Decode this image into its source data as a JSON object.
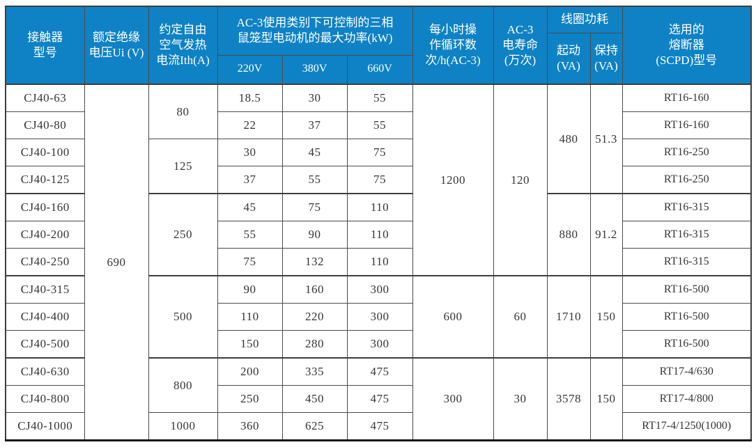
{
  "table": {
    "title": "CJ40 contactor specification table",
    "header": {
      "model": "接触器\n型号",
      "voltage": "额定绝缘\n电压Ui (V)",
      "current": "约定自由\n空气发热\n电流Ith(A)",
      "power_group": "AC-3使用类别下可控制的三相\n鼠笼型电动机的最大功率(kW)",
      "power_cols": [
        "220V",
        "380V",
        "660V"
      ],
      "cycles": "每小时操\n作循环数\n次/h(AC-3)",
      "life": "AC-3\n电寿命\n(万次)",
      "coil_group": "线圈功耗",
      "coil_cols": [
        "起动\n(VA)",
        "保持\n(VA)"
      ],
      "fuse": "选用的\n熔断器\n(SCPD)型号"
    },
    "rows": [
      {
        "cells": [
          {
            "t": "CJ40-63"
          },
          {
            "t": "690",
            "rs": 13
          },
          {
            "t": "80",
            "rs": 2
          },
          {
            "t": "18.5"
          },
          {
            "t": "30"
          },
          {
            "t": "55"
          },
          {
            "t": "1200",
            "rs": 7
          },
          {
            "t": "120",
            "rs": 7
          },
          {
            "t": "480",
            "rs": 4
          },
          {
            "t": "51.3",
            "rs": 4
          },
          {
            "t": "RT16-160"
          }
        ]
      },
      {
        "cells": [
          {
            "t": "CJ40-80"
          },
          {
            "t": "22"
          },
          {
            "t": "37"
          },
          {
            "t": "55"
          },
          {
            "t": "RT16-160"
          }
        ]
      },
      {
        "cells": [
          {
            "t": "CJ40-100"
          },
          {
            "t": "125",
            "rs": 2
          },
          {
            "t": "30"
          },
          {
            "t": "45"
          },
          {
            "t": "75"
          },
          {
            "t": "RT16-250"
          }
        ]
      },
      {
        "cells": [
          {
            "t": "CJ40-125"
          },
          {
            "t": "37"
          },
          {
            "t": "55"
          },
          {
            "t": "75"
          },
          {
            "t": "RT16-250"
          }
        ]
      },
      {
        "cells": [
          {
            "t": "CJ40-160"
          },
          {
            "t": "250",
            "rs": 3
          },
          {
            "t": "45"
          },
          {
            "t": "75"
          },
          {
            "t": "110"
          },
          {
            "t": "880",
            "rs": 3
          },
          {
            "t": "91.2",
            "rs": 3
          },
          {
            "t": "RT16-315"
          }
        ]
      },
      {
        "cells": [
          {
            "t": "CJ40-200"
          },
          {
            "t": "55"
          },
          {
            "t": "90"
          },
          {
            "t": "110"
          },
          {
            "t": "RT16-315"
          }
        ]
      },
      {
        "cells": [
          {
            "t": "CJ40-250"
          },
          {
            "t": "75"
          },
          {
            "t": "132"
          },
          {
            "t": "110"
          },
          {
            "t": "RT16-315"
          }
        ]
      },
      {
        "cells": [
          {
            "t": "CJ40-315"
          },
          {
            "t": "500",
            "rs": 3
          },
          {
            "t": "90"
          },
          {
            "t": "160"
          },
          {
            "t": "300"
          },
          {
            "t": "600",
            "rs": 3
          },
          {
            "t": "60",
            "rs": 3
          },
          {
            "t": "1710",
            "rs": 3
          },
          {
            "t": "150",
            "rs": 3
          },
          {
            "t": "RT16-500"
          }
        ]
      },
      {
        "cells": [
          {
            "t": "CJ40-400"
          },
          {
            "t": "110"
          },
          {
            "t": "220"
          },
          {
            "t": "300"
          },
          {
            "t": "RT16-500"
          }
        ]
      },
      {
        "cells": [
          {
            "t": "CJ40-500"
          },
          {
            "t": "150"
          },
          {
            "t": "280"
          },
          {
            "t": "300"
          },
          {
            "t": "RT16-500"
          }
        ]
      },
      {
        "cells": [
          {
            "t": "CJ40-630"
          },
          {
            "t": "800",
            "rs": 2
          },
          {
            "t": "200"
          },
          {
            "t": "335"
          },
          {
            "t": "475"
          },
          {
            "t": "300",
            "rs": 3
          },
          {
            "t": "30",
            "rs": 3
          },
          {
            "t": "3578",
            "rs": 3
          },
          {
            "t": "150",
            "rs": 3
          },
          {
            "t": "RT17-4/630"
          }
        ]
      },
      {
        "cells": [
          {
            "t": "CJ40-800"
          },
          {
            "t": "250"
          },
          {
            "t": "450"
          },
          {
            "t": "475"
          },
          {
            "t": "RT17-4/800"
          }
        ]
      },
      {
        "cells": [
          {
            "t": "CJ40-1000"
          },
          {
            "t": "1000"
          },
          {
            "t": "360"
          },
          {
            "t": "625"
          },
          {
            "t": "475"
          },
          {
            "t": "RT17-4/1250(1000)"
          }
        ]
      }
    ]
  },
  "colors": {
    "header_bg": "#0f82c5",
    "header_text": "#ffffff",
    "grid": "#4a4a4a",
    "body_text": "#363636"
  }
}
